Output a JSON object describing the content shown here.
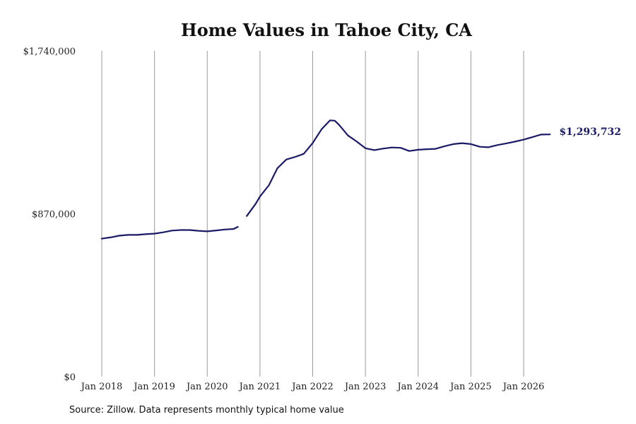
{
  "chart_data": {
    "type": "line",
    "title": "Home Values in Tahoe City, CA",
    "xlabel": "",
    "ylabel": "",
    "ylim": [
      0,
      1740000
    ],
    "y_ticks": [
      {
        "value": 0,
        "label": "$0"
      },
      {
        "value": 870000,
        "label": "$870,000"
      },
      {
        "value": 1740000,
        "label": "$1,740,000"
      }
    ],
    "x_ticks": [
      {
        "value": 2018.0,
        "label": "Jan 2018"
      },
      {
        "value": 2019.0,
        "label": "Jan 2019"
      },
      {
        "value": 2020.0,
        "label": "Jan 2020"
      },
      {
        "value": 2021.0,
        "label": "Jan 2021"
      },
      {
        "value": 2022.0,
        "label": "Jan 2022"
      },
      {
        "value": 2023.0,
        "label": "Jan 2023"
      },
      {
        "value": 2024.0,
        "label": "Jan 2024"
      },
      {
        "value": 2025.0,
        "label": "Jan 2025"
      },
      {
        "value": 2026.0,
        "label": "Jan 2026"
      }
    ],
    "xlim": [
      2017.8,
      2026.8
    ],
    "grid": "vertical",
    "line_color": "#1a1a66",
    "series": [
      {
        "segments": [
          {
            "x": [
              2018.0,
              2018.17,
              2018.33,
              2018.5,
              2018.67,
              2018.83,
              2019.0,
              2019.17,
              2019.33,
              2019.5,
              2019.67,
              2019.83,
              2020.0,
              2020.17,
              2020.33,
              2020.5,
              2020.58
            ],
            "y": [
              737000,
              744000,
              753000,
              757000,
              757000,
              761000,
              764000,
              771000,
              780000,
              783000,
              783000,
              779000,
              776000,
              781000,
              786000,
              789000,
              800000
            ]
          },
          {
            "x": [
              2020.75,
              2020.92,
              2021.0,
              2021.17,
              2021.33,
              2021.5,
              2021.67,
              2021.83,
              2022.0,
              2022.17,
              2022.33,
              2022.42,
              2022.5,
              2022.67,
              2022.83,
              2023.0,
              2023.17,
              2023.33,
              2023.5,
              2023.67,
              2023.83,
              2024.0,
              2024.17,
              2024.33,
              2024.5,
              2024.67,
              2024.83,
              2025.0,
              2025.17,
              2025.33,
              2025.5,
              2025.67,
              2025.83,
              2026.0,
              2026.17,
              2026.33,
              2026.5
            ],
            "y": [
              858000,
              924000,
              962000,
              1023000,
              1113000,
              1160000,
              1174000,
              1190000,
              1248000,
              1322000,
              1369000,
              1367000,
              1345000,
              1288000,
              1257000,
              1220000,
              1210000,
              1218000,
              1224000,
              1222000,
              1205000,
              1212000,
              1215000,
              1217000,
              1231000,
              1242000,
              1247000,
              1242000,
              1228000,
              1225000,
              1237000,
              1246000,
              1255000,
              1266000,
              1280000,
              1293000,
              1293732
            ]
          }
        ]
      }
    ],
    "end_label": "$1,293,732"
  },
  "source": "Source: Zillow. Data represents monthly typical home value"
}
